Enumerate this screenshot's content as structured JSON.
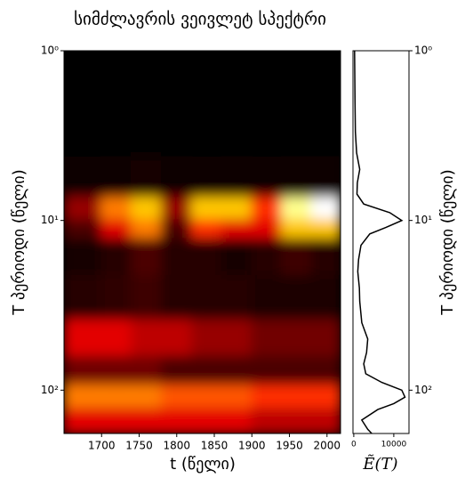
{
  "chart_data": [
    {
      "type": "heatmap",
      "title": "სიმძლავრის ვეივლეტ სპექტრი",
      "xlabel": "t (წელი)",
      "ylabel": "T პერიოდი (წელი)",
      "x": [
        1680,
        1720,
        1760,
        1800,
        1840,
        1880,
        1920,
        1960,
        2000
      ],
      "y": [
        3,
        6,
        9,
        11,
        15,
        30,
        50,
        80,
        110,
        150
      ],
      "values": [
        [
          0,
          0,
          0,
          0,
          0,
          0,
          0,
          0,
          0
        ],
        [
          0.1,
          0.2,
          0.3,
          0.2,
          0.1,
          0.2,
          0.1,
          0.2,
          0.2
        ],
        [
          2,
          5,
          6,
          2,
          6,
          6,
          4,
          8,
          9
        ],
        [
          1,
          3,
          5,
          1,
          4,
          3,
          3,
          6,
          6
        ],
        [
          0.3,
          0.5,
          1,
          0.5,
          0.5,
          0.3,
          0.5,
          0.8,
          0.5
        ],
        [
          0.5,
          0.6,
          0.8,
          0.5,
          0.5,
          0.5,
          0.4,
          0.4,
          0.4
        ],
        [
          3,
          3,
          2.5,
          2.5,
          2,
          2,
          1.5,
          1.5,
          1.5
        ],
        [
          1.5,
          1.5,
          1.5,
          1,
          1,
          1,
          1,
          1,
          1
        ],
        [
          5,
          5,
          5,
          4.5,
          4.5,
          4.5,
          4,
          4,
          4
        ],
        [
          3,
          3,
          3,
          3,
          3,
          3,
          2.5,
          2.5,
          2.5
        ]
      ],
      "xlim": [
        1650,
        2018
      ],
      "xticks": [
        1700,
        1750,
        1800,
        1850,
        1900,
        1950,
        2000
      ],
      "ylim": [
        1,
        180
      ],
      "log_y": true,
      "invert_y": true,
      "yticks": [
        {
          "value": 1,
          "label": "10⁰"
        },
        {
          "value": 10,
          "label": "10¹"
        },
        {
          "value": 100,
          "label": "10²"
        }
      ]
    },
    {
      "type": "line",
      "xlabel": "Ẽ(T)",
      "ylabel": "T პერიოდი (წელი)",
      "color": "#000000",
      "periods": [
        1,
        2,
        3,
        4,
        5,
        6,
        7,
        8,
        9,
        10,
        11,
        12,
        14,
        17,
        20,
        25,
        30,
        40,
        50,
        60,
        70,
        80,
        90,
        100,
        110,
        120,
        130,
        150,
        170,
        180
      ],
      "values": [
        200,
        300,
        400,
        700,
        1500,
        900,
        800,
        2500,
        9000,
        12000,
        8000,
        4000,
        1800,
        1200,
        1000,
        1400,
        1500,
        2000,
        3500,
        3200,
        2500,
        3000,
        7000,
        12000,
        12800,
        10000,
        6000,
        2000,
        3500,
        4500
      ],
      "xlim": [
        -200,
        13800
      ],
      "xticks": [
        0,
        10000
      ],
      "ylim": [
        1,
        180
      ],
      "log_y": true,
      "invert_y": true,
      "yticks": [
        {
          "value": 1,
          "label": "10⁰"
        },
        {
          "value": 10,
          "label": "10¹"
        },
        {
          "value": 100,
          "label": "10²"
        }
      ]
    }
  ]
}
